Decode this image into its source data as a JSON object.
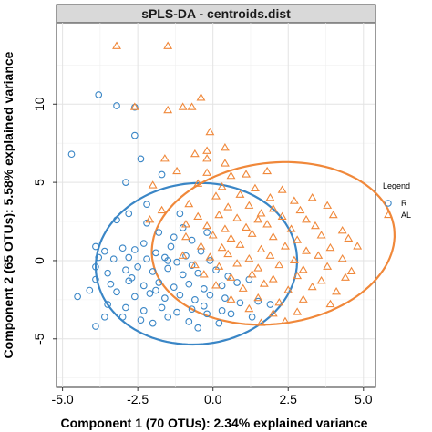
{
  "chart_data": {
    "type": "scatter",
    "title": "sPLS-DA - centroids.dist",
    "xlabel": "Component 1 (70 OTUs): 2.34% explained variance",
    "ylabel": "Component 2 (65 OTUs): 5.58% explained variance",
    "xlim": [
      -5.2,
      5.4
    ],
    "ylim": [
      -8.1,
      15.2
    ],
    "xticks": [
      -5.0,
      -2.5,
      0.0,
      2.5,
      5.0
    ],
    "xtick_labels": [
      "-5.0",
      "-2.5",
      "0.0",
      "2.5",
      "5.0"
    ],
    "yticks": [
      -5,
      0,
      5,
      10
    ],
    "ytick_labels": [
      "-5",
      "0",
      "5",
      "10"
    ],
    "grid": true,
    "legend": {
      "title": "Legend",
      "position": "right"
    },
    "series": [
      {
        "name": "R",
        "color": "#3a86c6",
        "marker": "circle",
        "ellipse": {
          "cx": -0.55,
          "cy": -0.2,
          "rx": 3.35,
          "ry": 5.15,
          "angle_deg": -5
        },
        "points": [
          [
            -4.7,
            6.8
          ],
          [
            -3.8,
            10.6
          ],
          [
            -3.2,
            9.9
          ],
          [
            -2.6,
            9.8
          ],
          [
            -2.6,
            8.0
          ],
          [
            -2.4,
            6.5
          ],
          [
            -2.9,
            5.0
          ],
          [
            -1.7,
            5.5
          ],
          [
            -2.2,
            3.6
          ],
          [
            -2.8,
            3.0
          ],
          [
            -1.1,
            3.0
          ],
          [
            -3.2,
            2.6
          ],
          [
            -2.2,
            2.4
          ],
          [
            -1.8,
            1.8
          ],
          [
            -1.3,
            1.5
          ],
          [
            -1.0,
            2.1
          ],
          [
            -0.7,
            1.3
          ],
          [
            -2.3,
            1.1
          ],
          [
            -3.9,
            0.9
          ],
          [
            -3.6,
            0.6
          ],
          [
            -3.0,
            0.8
          ],
          [
            -2.6,
            0.7
          ],
          [
            -1.9,
            0.5
          ],
          [
            -1.4,
            0.9
          ],
          [
            -0.9,
            0.3
          ],
          [
            -0.4,
            0.6
          ],
          [
            -0.1,
            0.0
          ],
          [
            -3.8,
            0.2
          ],
          [
            -3.3,
            0.1
          ],
          [
            -2.8,
            0.2
          ],
          [
            -2.2,
            0.1
          ],
          [
            -1.6,
            0.2
          ],
          [
            -1.2,
            -0.1
          ],
          [
            -0.7,
            -0.3
          ],
          [
            -3.9,
            -0.4
          ],
          [
            -3.5,
            -0.8
          ],
          [
            -2.9,
            -0.6
          ],
          [
            -2.5,
            -0.4
          ],
          [
            -2.0,
            -0.7
          ],
          [
            -1.5,
            -0.5
          ],
          [
            -1.0,
            -0.9
          ],
          [
            -0.5,
            -0.8
          ],
          [
            0.1,
            -0.6
          ],
          [
            0.5,
            -1.0
          ],
          [
            -3.9,
            -1.2
          ],
          [
            -3.4,
            -1.5
          ],
          [
            -2.8,
            -1.3
          ],
          [
            -2.3,
            -1.6
          ],
          [
            -1.8,
            -1.4
          ],
          [
            -1.3,
            -1.7
          ],
          [
            -0.8,
            -1.5
          ],
          [
            -0.3,
            -1.8
          ],
          [
            0.3,
            -1.6
          ],
          [
            0.8,
            -1.4
          ],
          [
            1.2,
            -1.2
          ],
          [
            -4.1,
            -1.9
          ],
          [
            -3.2,
            -2.0
          ],
          [
            -2.6,
            -2.3
          ],
          [
            -2.1,
            -2.1
          ],
          [
            -1.6,
            -2.4
          ],
          [
            -1.1,
            -2.2
          ],
          [
            -0.6,
            -2.5
          ],
          [
            -0.1,
            -2.2
          ],
          [
            0.4,
            -2.4
          ],
          [
            0.9,
            -2.7
          ],
          [
            1.5,
            -2.6
          ],
          [
            1.9,
            -2.8
          ],
          [
            -3.5,
            -2.8
          ],
          [
            -2.9,
            -3.0
          ],
          [
            -2.3,
            -3.2
          ],
          [
            -1.7,
            -3.0
          ],
          [
            -1.2,
            -3.3
          ],
          [
            -0.7,
            -3.1
          ],
          [
            -0.2,
            -3.4
          ],
          [
            0.3,
            -3.2
          ],
          [
            -3.0,
            -3.6
          ],
          [
            -2.4,
            -3.8
          ],
          [
            -1.5,
            -3.6
          ],
          [
            -0.8,
            -3.9
          ],
          [
            0.6,
            -3.4
          ],
          [
            -3.9,
            -4.2
          ],
          [
            -2.0,
            -4.0
          ],
          [
            -0.5,
            -4.3
          ],
          [
            0.2,
            -4.0
          ],
          [
            1.3,
            -3.6
          ],
          [
            -2.7,
            -1.1
          ],
          [
            -0.2,
            1.8
          ],
          [
            -1.5,
            0.0
          ],
          [
            -4.5,
            -2.3
          ],
          [
            -3.6,
            -3.6
          ],
          [
            -1.9,
            -1.9
          ],
          [
            -0.3,
            -2.9
          ]
        ]
      },
      {
        "name": "AL",
        "color": "#f0883a",
        "marker": "triangle",
        "ellipse": {
          "cx": 2.0,
          "cy": 1.1,
          "rx": 4.05,
          "ry": 5.15,
          "angle_deg": -7
        },
        "points": [
          [
            -3.2,
            13.7
          ],
          [
            -1.5,
            13.7
          ],
          [
            -2.6,
            9.8
          ],
          [
            -1.5,
            9.6
          ],
          [
            -1.0,
            9.8
          ],
          [
            -0.7,
            9.8
          ],
          [
            -0.4,
            10.4
          ],
          [
            -0.1,
            8.2
          ],
          [
            -0.2,
            7.0
          ],
          [
            -0.6,
            6.8
          ],
          [
            -1.6,
            6.5
          ],
          [
            -0.2,
            6.5
          ],
          [
            0.4,
            7.2
          ],
          [
            -1.2,
            5.7
          ],
          [
            -0.2,
            5.6
          ],
          [
            0.6,
            5.4
          ],
          [
            1.1,
            5.5
          ],
          [
            1.8,
            5.7
          ],
          [
            -2.0,
            4.8
          ],
          [
            -0.5,
            4.9
          ],
          [
            0.3,
            4.7
          ],
          [
            1.4,
            4.6
          ],
          [
            2.3,
            4.5
          ],
          [
            0.1,
            4.1
          ],
          [
            0.9,
            4.2
          ],
          [
            1.9,
            4.0
          ],
          [
            2.7,
            3.8
          ],
          [
            3.3,
            4.0
          ],
          [
            -0.8,
            3.6
          ],
          [
            0.5,
            3.4
          ],
          [
            1.2,
            3.5
          ],
          [
            2.0,
            3.3
          ],
          [
            2.9,
            3.2
          ],
          [
            3.8,
            3.5
          ],
          [
            -0.5,
            2.8
          ],
          [
            0.2,
            2.9
          ],
          [
            0.8,
            2.7
          ],
          [
            1.5,
            2.6
          ],
          [
            2.3,
            2.8
          ],
          [
            3.1,
            2.6
          ],
          [
            4.0,
            2.9
          ],
          [
            -0.2,
            2.2
          ],
          [
            0.4,
            2.0
          ],
          [
            1.1,
            2.1
          ],
          [
            1.8,
            2.3
          ],
          [
            2.6,
            2.0
          ],
          [
            3.4,
            2.2
          ],
          [
            4.3,
            1.9
          ],
          [
            -0.9,
            1.5
          ],
          [
            0.0,
            1.6
          ],
          [
            0.6,
            1.4
          ],
          [
            1.3,
            1.7
          ],
          [
            2.0,
            1.5
          ],
          [
            2.8,
            1.3
          ],
          [
            3.6,
            1.6
          ],
          [
            4.5,
            1.4
          ],
          [
            -0.4,
            0.9
          ],
          [
            0.3,
            0.8
          ],
          [
            0.9,
            1.0
          ],
          [
            1.6,
            0.7
          ],
          [
            2.4,
            0.9
          ],
          [
            3.1,
            0.6
          ],
          [
            3.9,
            0.8
          ],
          [
            4.8,
            0.9
          ],
          [
            -1.0,
            0.3
          ],
          [
            -0.1,
            0.2
          ],
          [
            0.5,
            0.4
          ],
          [
            1.2,
            0.1
          ],
          [
            1.9,
            0.3
          ],
          [
            2.7,
            0.0
          ],
          [
            3.5,
            0.3
          ],
          [
            4.3,
            0.1
          ],
          [
            -0.6,
            -0.3
          ],
          [
            0.2,
            -0.4
          ],
          [
            0.8,
            -0.2
          ],
          [
            1.5,
            -0.5
          ],
          [
            2.2,
            -0.3
          ],
          [
            3.0,
            -0.6
          ],
          [
            3.8,
            -0.4
          ],
          [
            4.6,
            -0.7
          ],
          [
            -0.3,
            -0.9
          ],
          [
            0.6,
            -1.1
          ],
          [
            1.3,
            -0.9
          ],
          [
            2.0,
            -1.2
          ],
          [
            2.8,
            -1.0
          ],
          [
            3.6,
            -1.3
          ],
          [
            4.4,
            -1.1
          ],
          [
            0.1,
            -1.6
          ],
          [
            1.0,
            -1.8
          ],
          [
            1.7,
            -1.5
          ],
          [
            2.5,
            -1.9
          ],
          [
            3.3,
            -1.7
          ],
          [
            4.1,
            -2.0
          ],
          [
            0.6,
            -2.5
          ],
          [
            1.5,
            -2.4
          ],
          [
            2.2,
            -2.7
          ],
          [
            3.0,
            -2.5
          ],
          [
            3.9,
            -2.8
          ],
          [
            1.2,
            -3.1
          ],
          [
            2.0,
            -3.4
          ],
          [
            2.8,
            -3.3
          ],
          [
            1.6,
            -4.0
          ],
          [
            2.4,
            -3.9
          ],
          [
            -2.1,
            2.6
          ],
          [
            -1.7,
            3.2
          ],
          [
            -0.9,
            2.3
          ],
          [
            0.4,
            6.2
          ],
          [
            1.6,
            3.0
          ]
        ]
      }
    ]
  }
}
